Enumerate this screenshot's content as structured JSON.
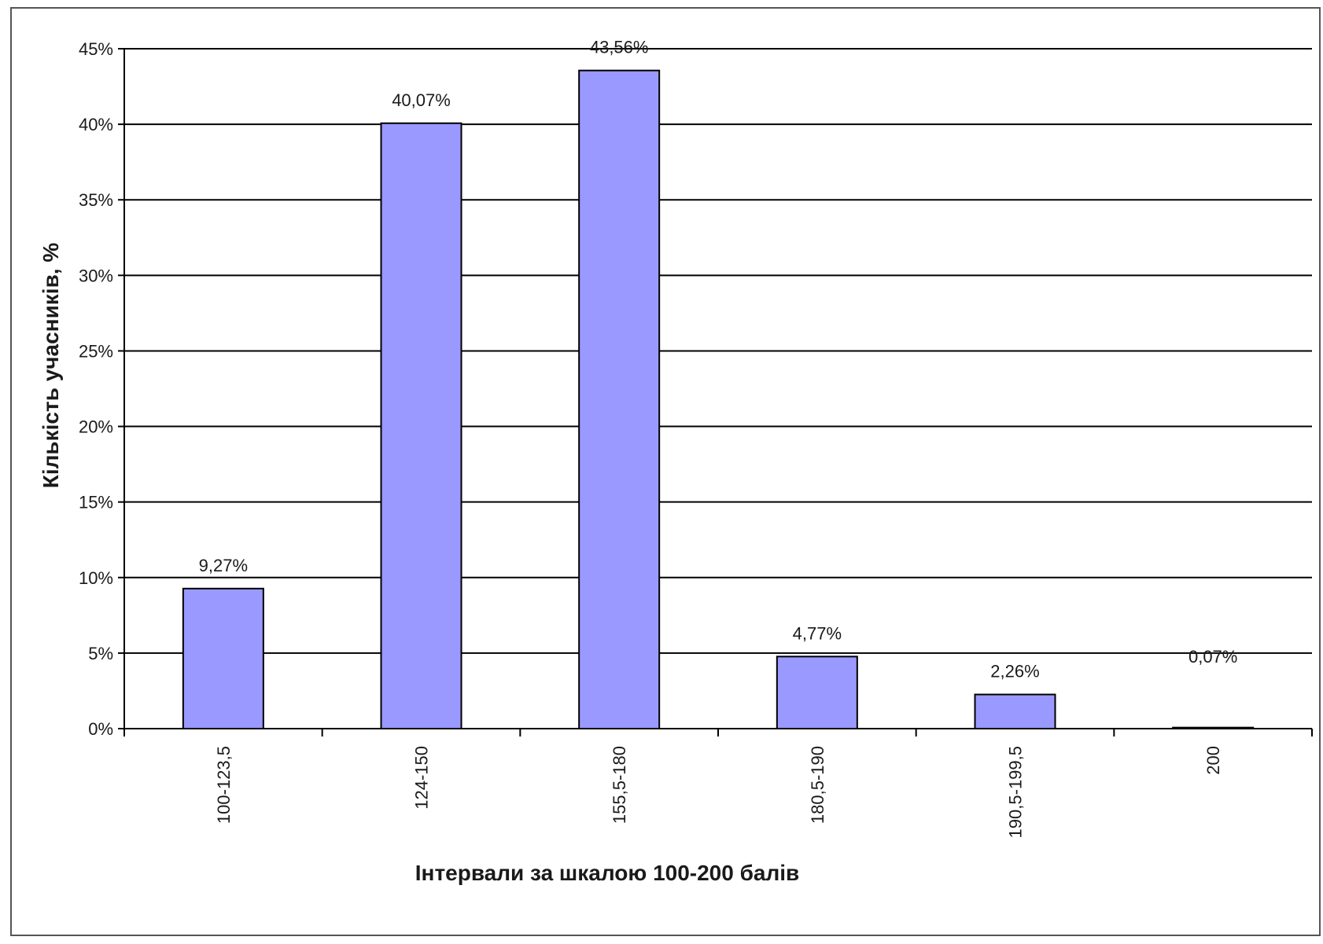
{
  "chart_data": {
    "type": "bar",
    "xlabel": "Інтервали за шкалою 100-200 балів",
    "ylabel": "Кількість учасників, %",
    "categories": [
      "100-123,5",
      "124-150",
      "155,5-180",
      "180,5-190",
      "190,5-199,5",
      "200"
    ],
    "values": [
      9.27,
      40.07,
      43.56,
      4.77,
      2.26,
      0.07
    ],
    "data_labels": [
      "9,27%",
      "40,07%",
      "43,56%",
      "4,77%",
      "2,26%",
      "0,07%"
    ],
    "ylim": [
      0,
      45
    ],
    "yticks": [
      0,
      5,
      10,
      15,
      20,
      25,
      30,
      35,
      40,
      45
    ],
    "ytick_labels": [
      "0%",
      "5%",
      "10%",
      "15%",
      "20%",
      "25%",
      "30%",
      "35%",
      "40%",
      "45%"
    ],
    "grid": true,
    "legend": "none",
    "colors": {
      "bar_fill": "#9999ff",
      "bar_stroke": "#000000",
      "grid": "#000000",
      "frame": "#555555"
    }
  }
}
